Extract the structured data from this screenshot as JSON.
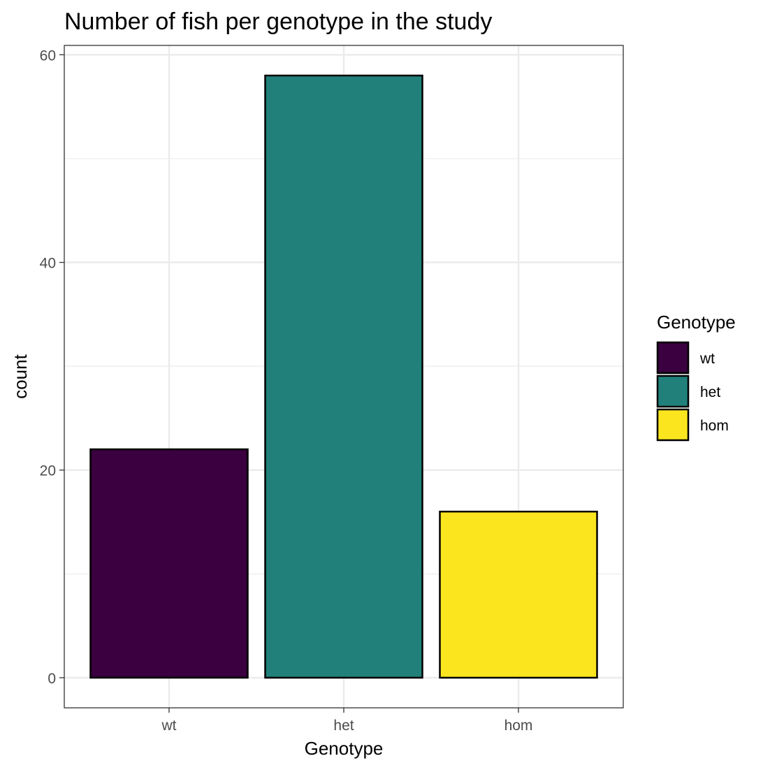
{
  "chart_data": {
    "type": "bar",
    "title": "Number of fish per genotype in the study",
    "xlabel": "Genotype",
    "ylabel": "count",
    "categories": [
      "wt",
      "het",
      "hom"
    ],
    "values": [
      22,
      58,
      16
    ],
    "colors": [
      "#3a003f",
      "#21807a",
      "#fbe51f"
    ],
    "ylim": [
      -2.9,
      60.9
    ],
    "yticks": [
      0,
      20,
      40,
      60
    ],
    "grid": true,
    "legend": {
      "title": "Genotype",
      "placement": "right",
      "entries": [
        "wt",
        "het",
        "hom"
      ]
    }
  }
}
